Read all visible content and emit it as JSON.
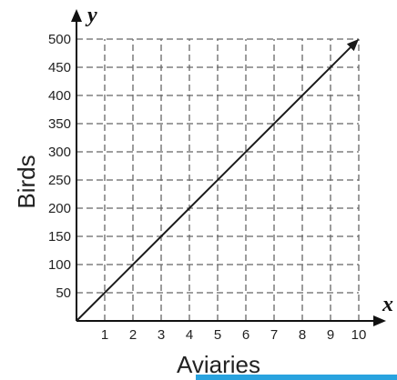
{
  "chart_data": {
    "type": "line",
    "x_variable": "x",
    "y_variable": "y",
    "xlabel": "Aviaries",
    "ylabel": "Birds",
    "xlim": [
      0,
      10
    ],
    "ylim": [
      0,
      500
    ],
    "x_ticks": [
      "1",
      "2",
      "3",
      "4",
      "5",
      "6",
      "7",
      "8",
      "9",
      "10"
    ],
    "y_ticks": [
      "50",
      "100",
      "150",
      "200",
      "250",
      "300",
      "350",
      "400",
      "450",
      "500"
    ],
    "grid": true,
    "grid_style": "dashed",
    "series": [
      {
        "x": [
          0,
          10
        ],
        "y": [
          0,
          500
        ]
      }
    ]
  },
  "colors": {
    "line": "#1a1a1a",
    "grid": "#666666",
    "axis": "#111111",
    "bottom_bar": "#29a3df"
  }
}
